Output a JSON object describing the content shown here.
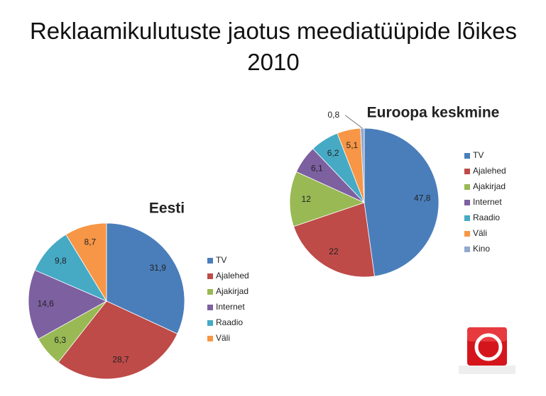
{
  "title": "Reklaamikulutuste jaotus meediatüüpide lõikes 2010",
  "chart_data": [
    {
      "type": "pie",
      "title": "Eesti",
      "categories": [
        "TV",
        "Ajalehed",
        "Ajakirjad",
        "Internet",
        "Raadio",
        "Väli"
      ],
      "values": [
        31.9,
        28.7,
        6.3,
        14.6,
        9.8,
        8.7
      ],
      "value_labels": [
        "31,9",
        "28,7",
        "6,3",
        "14,6",
        "9,8",
        "8,7"
      ],
      "colors": [
        "#4a7ebb",
        "#be4b48",
        "#98b954",
        "#7d60a0",
        "#46aac5",
        "#f79646"
      ],
      "legend": "right"
    },
    {
      "type": "pie",
      "title": "Euroopa keskmine",
      "categories": [
        "TV",
        "Ajalehed",
        "Ajakirjad",
        "Internet",
        "Raadio",
        "Väli",
        "Kino"
      ],
      "values": [
        47.8,
        22,
        12,
        6.1,
        6.2,
        5.1,
        0.8
      ],
      "value_labels": [
        "47,8",
        "22",
        "12",
        "6,1",
        "6,2",
        "5,1",
        "0,8"
      ],
      "colors": [
        "#4a7ebb",
        "#be4b48",
        "#98b954",
        "#7d60a0",
        "#46aac5",
        "#f79646",
        "#92a9cf"
      ],
      "legend": "right"
    }
  ]
}
